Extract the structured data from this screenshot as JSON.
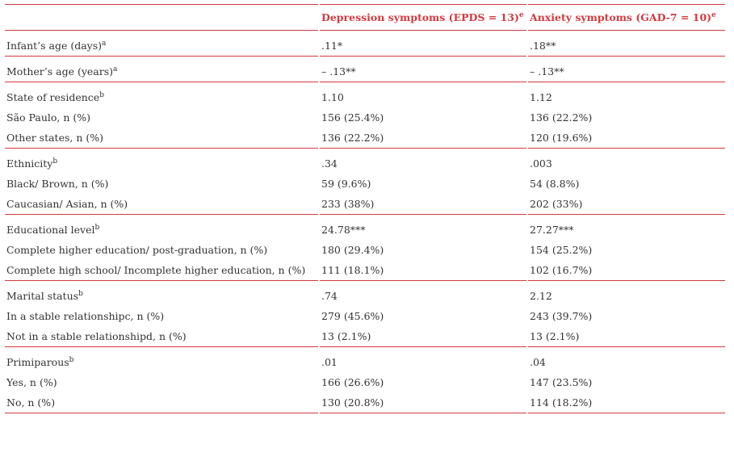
{
  "table": {
    "header": [
      {
        "text": "Depression symptoms (EPDS = 13)",
        "sup": "e"
      },
      {
        "text": "Anxiety symptoms (GAD-7 = 10)",
        "sup": "e"
      }
    ],
    "groups": [
      {
        "rows": [
          {
            "label": "Infant’s age (days)",
            "sup": "a",
            "cells": [
              ".11*",
              ".18**"
            ]
          }
        ]
      },
      {
        "rows": [
          {
            "label": "Mother’s age (years)",
            "sup": "a",
            "cells": [
              "– .13**",
              "– .13**"
            ]
          }
        ]
      },
      {
        "rows": [
          {
            "label": "State of residence",
            "sup": "b",
            "cells": [
              "1.10",
              "1.12"
            ]
          },
          {
            "label": "São Paulo, n (%)",
            "cells": [
              "156 (25.4%)",
              "136 (22.2%)"
            ]
          },
          {
            "label": "Other states, n (%)",
            "cells": [
              "136 (22.2%)",
              "120 (19.6%)"
            ]
          }
        ]
      },
      {
        "rows": [
          {
            "label": "Ethnicity",
            "sup": "b",
            "cells": [
              ".34",
              ".003"
            ]
          },
          {
            "label": "Black/ Brown, n (%)",
            "cells": [
              "59 (9.6%)",
              "54 (8.8%)"
            ]
          },
          {
            "label": "Caucasian/ Asian, n (%)",
            "cells": [
              "233 (38%)",
              "202 (33%)"
            ]
          }
        ]
      },
      {
        "rows": [
          {
            "label": "Educational level",
            "sup": "b",
            "cells": [
              "24.78***",
              "27.27***"
            ]
          },
          {
            "label": "Complete higher education/ post-graduation, n (%)",
            "cells": [
              "180 (29.4%)",
              "154 (25.2%)"
            ]
          },
          {
            "label": "Complete high school/ Incomplete higher education, n (%)",
            "cells": [
              "111 (18.1%)",
              "102 (16.7%)"
            ]
          }
        ]
      },
      {
        "rows": [
          {
            "label": "Marital status",
            "sup": "b",
            "cells": [
              ".74",
              "2.12"
            ]
          },
          {
            "label": "In a stable relationshipc, n (%)",
            "cells": [
              "279 (45.6%)",
              "243 (39.7%)"
            ]
          },
          {
            "label": "Not in a stable relationshipd, n (%)",
            "cells": [
              "13 (2.1%)",
              "13 (2.1%)"
            ]
          }
        ]
      },
      {
        "rows": [
          {
            "label": "Primiparous",
            "sup": "b",
            "cells": [
              ".01",
              ".04"
            ]
          },
          {
            "label": "Yes, n (%)",
            "cells": [
              "166 (26.6%)",
              "147 (23.5%)"
            ]
          },
          {
            "label": "No, n (%)",
            "cells": [
              "130 (20.8%)",
              "114 (18.2%)"
            ]
          }
        ]
      }
    ]
  }
}
